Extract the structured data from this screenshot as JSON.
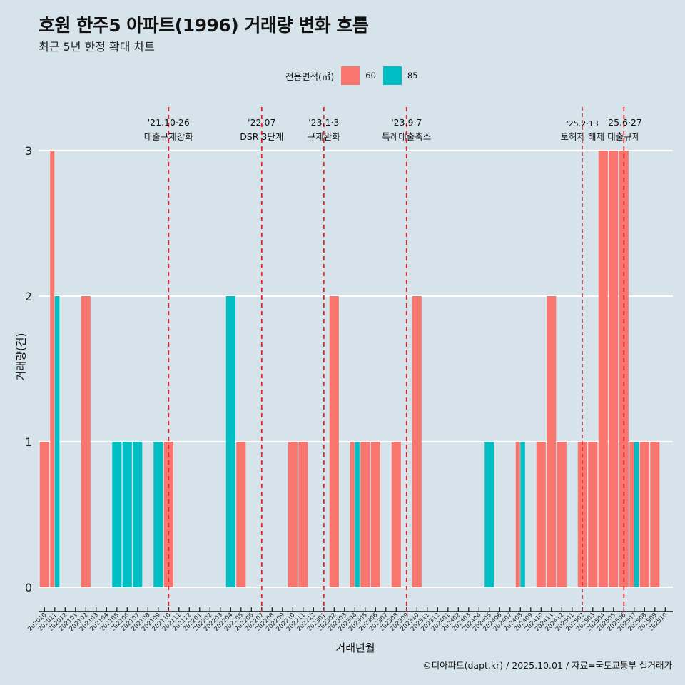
{
  "title": "호원 한주5 아파트(1996) 거래량 변화 흐름",
  "subtitle": "최근 5년 한정 확대 차트",
  "legend": {
    "title": "전용면적(㎡)",
    "items": [
      {
        "label": "60",
        "color": "#F8766D"
      },
      {
        "label": "85",
        "color": "#00BFC4"
      }
    ]
  },
  "caption": "©디아파트(dapt.kr) / 2025.10.01 / 자료=국토교통부 실거래가",
  "chart_data": {
    "type": "bar",
    "title": "호원 한주5 아파트(1996) 거래량 변화 흐름",
    "subtitle": "최근 5년 한정 확대 차트",
    "xlabel": "거래년월",
    "ylabel": "거래량(건)",
    "ylim": [
      0,
      3
    ],
    "yticks": [
      0,
      1,
      2,
      3
    ],
    "grid": "horizontal",
    "legend_position": "top",
    "bar_mode": "dodge",
    "categories": [
      "202010",
      "202011",
      "202012",
      "202101",
      "202102",
      "202103",
      "202104",
      "202105",
      "202106",
      "202107",
      "202108",
      "202109",
      "202110",
      "202111",
      "202112",
      "202201",
      "202202",
      "202203",
      "202204",
      "202205",
      "202206",
      "202207",
      "202208",
      "202209",
      "202210",
      "202211",
      "202212",
      "202301",
      "202302",
      "202303",
      "202304",
      "202305",
      "202306",
      "202307",
      "202308",
      "202309",
      "202310",
      "202311",
      "202312",
      "202401",
      "202402",
      "202403",
      "202404",
      "202405",
      "202406",
      "202407",
      "202408",
      "202409",
      "202410",
      "202411",
      "202412",
      "202501",
      "202502",
      "202503",
      "202504",
      "202505",
      "202506",
      "202507",
      "202508",
      "202509",
      "202510"
    ],
    "series": [
      {
        "name": "60",
        "color": "#F8766D",
        "values": [
          1,
          3,
          0,
          0,
          2,
          0,
          0,
          0,
          0,
          0,
          0,
          0,
          1,
          0,
          0,
          0,
          0,
          0,
          0,
          1,
          0,
          0,
          0,
          0,
          1,
          1,
          0,
          0,
          2,
          0,
          1,
          1,
          1,
          0,
          1,
          0,
          2,
          0,
          0,
          0,
          0,
          0,
          0,
          0,
          0,
          0,
          1,
          0,
          1,
          2,
          1,
          0,
          1,
          1,
          3,
          3,
          3,
          1,
          1,
          1,
          0
        ]
      },
      {
        "name": "85",
        "color": "#00BFC4",
        "values": [
          0,
          2,
          0,
          0,
          0,
          0,
          0,
          1,
          1,
          1,
          0,
          1,
          0,
          0,
          0,
          0,
          0,
          0,
          2,
          0,
          0,
          0,
          0,
          0,
          0,
          0,
          0,
          0,
          0,
          0,
          1,
          0,
          0,
          0,
          0,
          0,
          0,
          0,
          0,
          0,
          0,
          0,
          0,
          1,
          0,
          0,
          1,
          0,
          0,
          0,
          0,
          0,
          0,
          0,
          0,
          0,
          0,
          1,
          0,
          0,
          0
        ]
      }
    ],
    "annotations": [
      {
        "category": "202110",
        "date": "'21.10·26",
        "label": "대출규제강화",
        "style": "thick"
      },
      {
        "category": "202207",
        "date": "'22.07",
        "label": "DSR 3단계",
        "style": "thick"
      },
      {
        "category": "202301",
        "date": "'23.1·3",
        "label": "규제완화",
        "style": "thick"
      },
      {
        "category": "202309",
        "date": "'23.9·7",
        "label": "특례대출축소",
        "style": "thick"
      },
      {
        "category": "202502",
        "date": "'25.2·13",
        "label": "토허제 해제",
        "style": "thin"
      },
      {
        "category": "202506",
        "date": "'25.6·27",
        "label": "대출규제",
        "style": "thick"
      }
    ]
  }
}
